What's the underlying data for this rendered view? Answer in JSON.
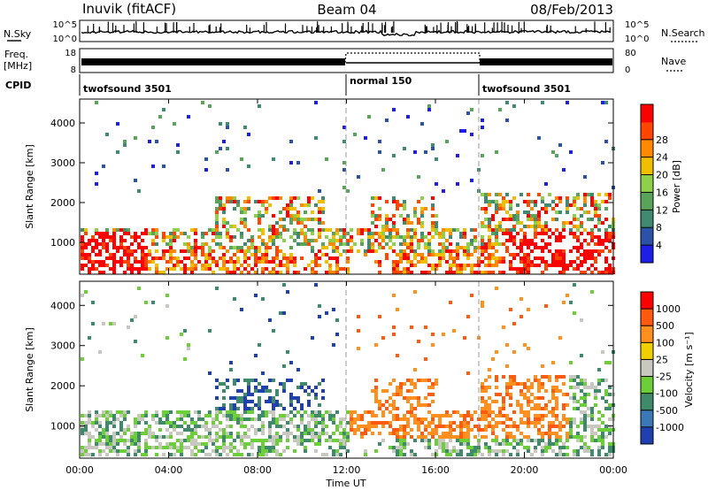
{
  "header": {
    "station": "Inuvik (fitACF)",
    "beam": "Beam 04",
    "date": "08/Feb/2013"
  },
  "colors": {
    "ink": "#000000",
    "power_scale": [
      "#1e1ee6",
      "#2c52a8",
      "#3f8a70",
      "#5aa35a",
      "#8fd04a",
      "#f0c000",
      "#ff8a00",
      "#ff4500",
      "#ff0000"
    ],
    "velocity_scale": [
      "#2040b0",
      "#3a78b8",
      "#3f8a6a",
      "#6ccf3a",
      "#c8c8c0",
      "#f0d000",
      "#ff9020",
      "#ff5a10",
      "#ff0000"
    ]
  },
  "panels": {
    "noise": {
      "left_label_1": "N.Sky",
      "left_ticks": [
        "10^5",
        "10^0"
      ],
      "right_ticks": [
        "10^5",
        "10^0"
      ],
      "right_label": "N.Search"
    },
    "freq": {
      "left_label_1": "Freq.",
      "left_label_2": "[MHz]",
      "left_ticks": [
        "18",
        "8"
      ],
      "right_ticks": [
        "80",
        "0"
      ],
      "right_label": "Nave"
    },
    "cpid": {
      "label": "CPID",
      "segments": [
        {
          "name": "twofsound 3501",
          "start_hour": 0,
          "end_hour": 12
        },
        {
          "name": "normal 150",
          "start_hour": 12,
          "end_hour": 18
        },
        {
          "name": "twofsound 3501",
          "start_hour": 18,
          "end_hour": 24
        }
      ]
    }
  },
  "chart_data": [
    {
      "type": "heatmap",
      "name": "power",
      "ylabel": "Slant Range [km]",
      "yticks": [
        "1000",
        "2000",
        "3000",
        "4000"
      ],
      "ylim": [
        200,
        4600
      ],
      "xlim": [
        0,
        24
      ],
      "colorbar_label": "Power [dB]",
      "colorbar_ticks": [
        "4",
        "8",
        "12",
        "16",
        "20",
        "24",
        "28"
      ],
      "colorbar_range": [
        0,
        32
      ]
    },
    {
      "type": "heatmap",
      "name": "velocity",
      "ylabel": "Slant Range [km]",
      "yticks": [
        "1000",
        "2000",
        "3000",
        "4000"
      ],
      "ylim": [
        200,
        4600
      ],
      "xlim": [
        0,
        24
      ],
      "xlabel": "Time UT",
      "xticks": [
        "00:00",
        "04:00",
        "08:00",
        "12:00",
        "16:00",
        "20:00",
        "00:00"
      ],
      "colorbar_label": "Velocity [m s⁻¹]",
      "colorbar_ticks": [
        "1000",
        "500",
        "100",
        "25",
        "-25",
        "-100",
        "-500",
        "-1000"
      ]
    }
  ]
}
